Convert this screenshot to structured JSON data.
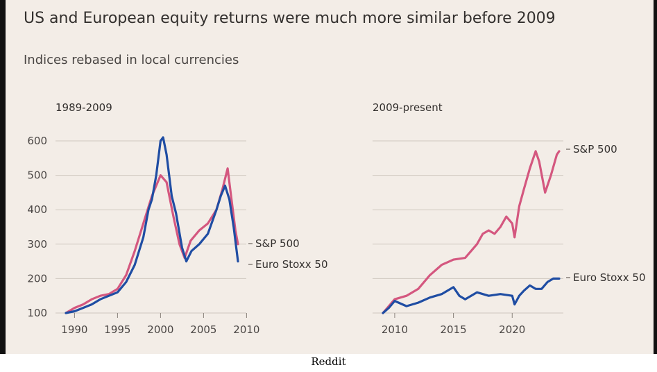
{
  "header": {
    "title": "US and European equity returns were much more similar before 2009",
    "subtitle": "Indices rebased in local currencies"
  },
  "footer": {
    "credit": "Reddit"
  },
  "colors": {
    "sp500": "#d4577f",
    "eurostoxx": "#1f4da3",
    "grid": "#cfc7bf",
    "background": "#f3ede7"
  },
  "chart_data": [
    {
      "type": "line",
      "title": "1989-2009",
      "ylim": [
        100,
        600
      ],
      "yticks": [
        100,
        200,
        300,
        400,
        500,
        600
      ],
      "xlim": [
        1989,
        2009
      ],
      "xticks": [
        1990,
        1995,
        2000,
        2005,
        2010
      ],
      "series": [
        {
          "name": "S&P 500",
          "x": [
            1989.0,
            1990.0,
            1991.0,
            1992.0,
            1993.0,
            1994.0,
            1995.0,
            1996.0,
            1997.0,
            1998.0,
            1999.0,
            1999.5,
            2000.0,
            2000.7,
            2001.5,
            2002.2,
            2002.8,
            2003.5,
            2004.5,
            2005.5,
            2006.5,
            2007.2,
            2007.8,
            2008.3,
            2008.7,
            2009.0
          ],
          "y": [
            100,
            115,
            125,
            140,
            150,
            155,
            170,
            210,
            280,
            360,
            440,
            470,
            500,
            480,
            380,
            300,
            260,
            310,
            340,
            360,
            400,
            460,
            520,
            420,
            340,
            300
          ]
        },
        {
          "name": "Euro Stoxx 50",
          "x": [
            1989.0,
            1990.0,
            1991.0,
            1992.0,
            1993.0,
            1994.0,
            1995.0,
            1996.0,
            1997.0,
            1998.0,
            1998.6,
            1999.0,
            1999.5,
            2000.0,
            2000.3,
            2000.7,
            2001.3,
            2001.8,
            2002.5,
            2003.0,
            2003.6,
            2004.5,
            2005.5,
            2006.5,
            2007.0,
            2007.5,
            2008.0,
            2008.5,
            2009.0
          ],
          "y": [
            100,
            105,
            115,
            125,
            140,
            150,
            160,
            190,
            240,
            320,
            400,
            430,
            500,
            600,
            610,
            560,
            440,
            390,
            290,
            250,
            280,
            300,
            330,
            400,
            440,
            470,
            430,
            350,
            250
          ]
        }
      ]
    },
    {
      "type": "line",
      "title": "2009-present",
      "ylim": [
        100,
        600
      ],
      "yticks": [
        100,
        200,
        300,
        400,
        500,
        600
      ],
      "xlim": [
        2009,
        2024
      ],
      "xticks": [
        2010,
        2015,
        2020
      ],
      "series": [
        {
          "name": "S&P 500",
          "x": [
            2009.0,
            2009.5,
            2010.0,
            2011.0,
            2012.0,
            2013.0,
            2014.0,
            2015.0,
            2016.0,
            2017.0,
            2017.5,
            2018.0,
            2018.5,
            2019.0,
            2019.5,
            2020.0,
            2020.2,
            2020.6,
            2021.0,
            2021.5,
            2022.0,
            2022.3,
            2022.8,
            2023.3,
            2023.8,
            2024.0
          ],
          "y": [
            100,
            120,
            140,
            150,
            170,
            210,
            240,
            255,
            260,
            300,
            330,
            340,
            330,
            350,
            380,
            360,
            320,
            410,
            460,
            520,
            570,
            540,
            450,
            500,
            560,
            570
          ]
        },
        {
          "name": "Euro Stoxx 50",
          "x": [
            2009.0,
            2009.5,
            2010.0,
            2011.0,
            2012.0,
            2013.0,
            2014.0,
            2015.0,
            2015.5,
            2016.0,
            2017.0,
            2018.0,
            2019.0,
            2020.0,
            2020.2,
            2020.6,
            2021.0,
            2021.5,
            2022.0,
            2022.5,
            2023.0,
            2023.5,
            2024.0
          ],
          "y": [
            100,
            115,
            135,
            120,
            130,
            145,
            155,
            175,
            150,
            140,
            160,
            150,
            155,
            150,
            125,
            150,
            165,
            180,
            170,
            170,
            190,
            200,
            200
          ]
        }
      ]
    }
  ]
}
